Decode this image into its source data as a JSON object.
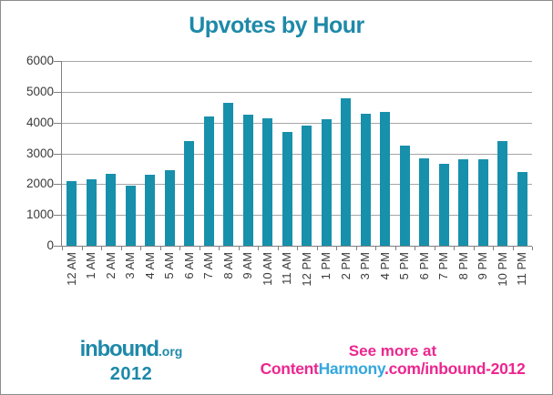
{
  "window": {
    "background": "#ffffff",
    "border_color": "#8c8c8c"
  },
  "chart_data": {
    "type": "bar",
    "title": "Upvotes by Hour",
    "categories": [
      "12 AM",
      "1 AM",
      "2 AM",
      "3 AM",
      "4 AM",
      "5 AM",
      "6 AM",
      "7 AM",
      "8 AM",
      "9 AM",
      "10 AM",
      "11 AM",
      "12 PM",
      "1 PM",
      "2 PM",
      "3 PM",
      "4 PM",
      "5 PM",
      "6 PM",
      "7 PM",
      "8 PM",
      "9 PM",
      "10 PM",
      "11 PM"
    ],
    "values": [
      2100,
      2150,
      2350,
      1950,
      2300,
      2450,
      3400,
      4200,
      4650,
      4250,
      4150,
      3700,
      3900,
      4100,
      4800,
      4300,
      4350,
      3250,
      2850,
      2650,
      2800,
      2800,
      3400,
      2400
    ],
    "xlabel": "",
    "ylabel": "",
    "ylim": [
      0,
      6000
    ],
    "y_ticks": [
      0,
      1000,
      2000,
      3000,
      4000,
      5000,
      6000
    ],
    "grid": true,
    "legend": "none",
    "bar_color": "#1790ac",
    "title_color": "#1e89a9",
    "gridline_color": "#a6a6a6",
    "axis_color": "#7f7f7f",
    "tick_label_color": "#3a3a3a"
  },
  "footer": {
    "logo": {
      "name": "inbound",
      "tld": ".org",
      "year": "2012",
      "color": "#1e89a9"
    },
    "promo": {
      "line1": "See more at",
      "brand_part1": "Content",
      "brand_part2": "Harmony",
      "brand_part3": ".com/inbound-2012",
      "pink": "#ec268f",
      "blue": "#35a7df"
    }
  }
}
